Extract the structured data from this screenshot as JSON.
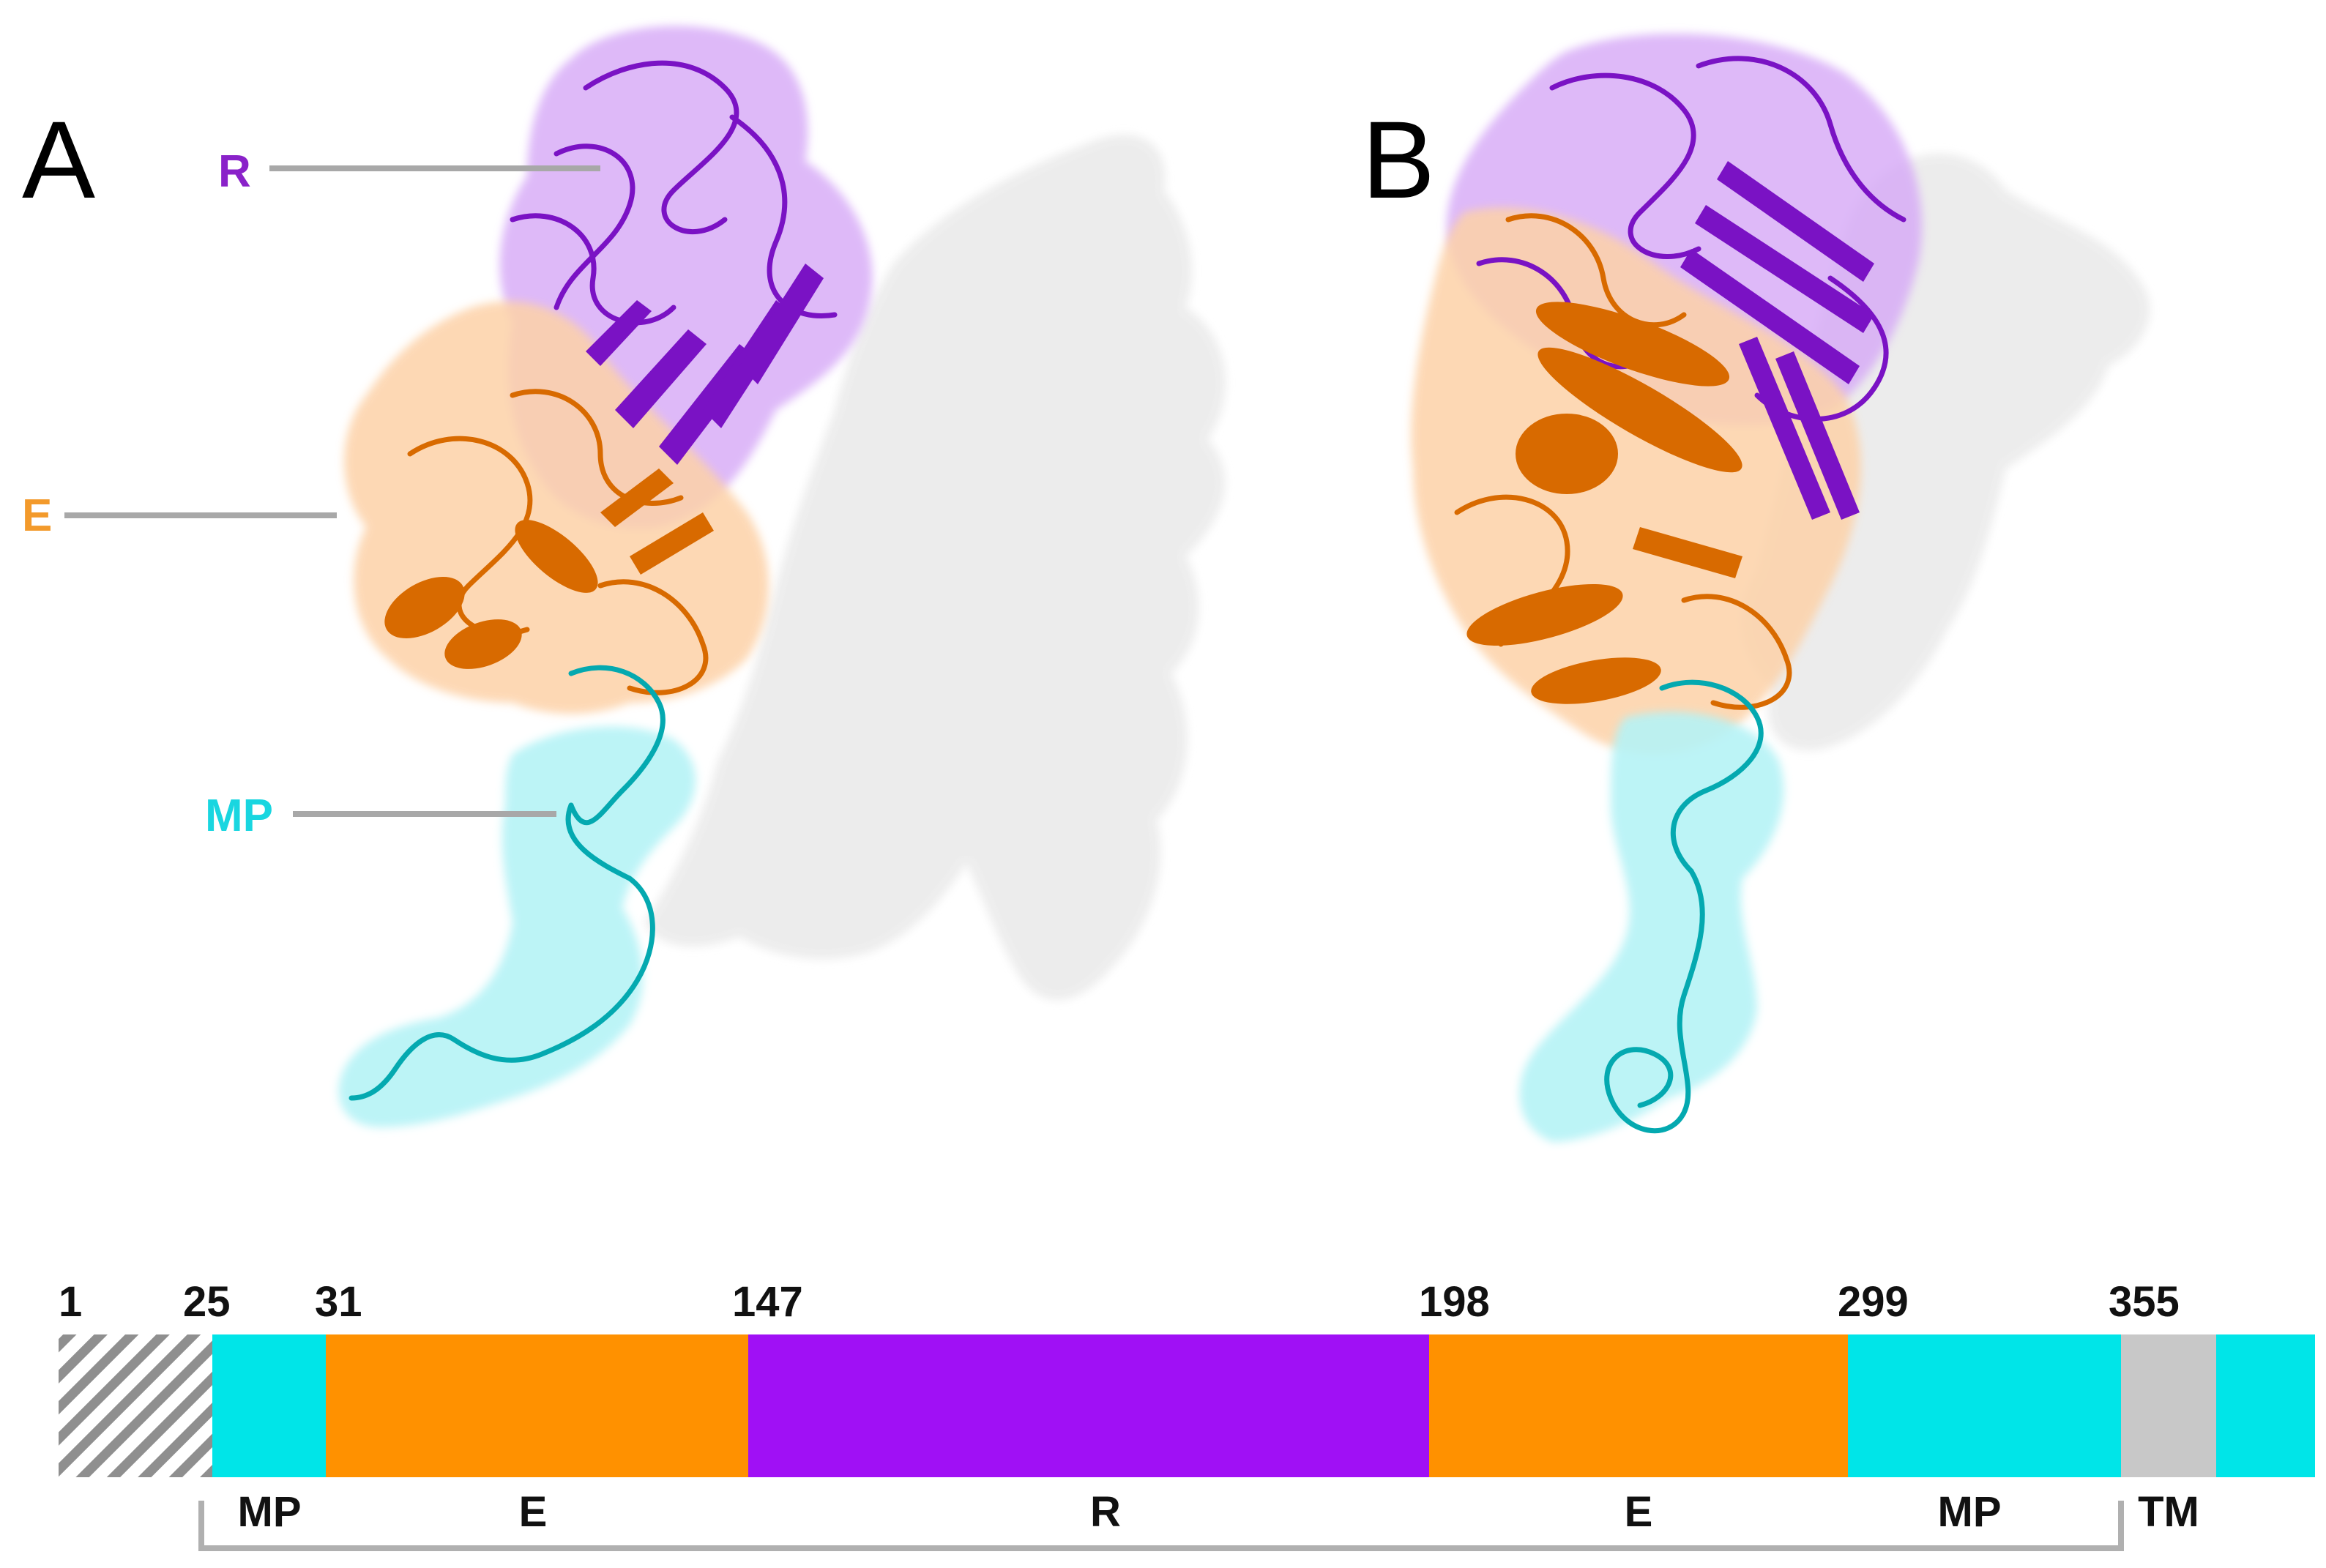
{
  "panels": {
    "a": {
      "letter": "A"
    },
    "b": {
      "letter": "B"
    }
  },
  "domain_labels": {
    "r": "R",
    "e": "E",
    "mp": "MP"
  },
  "colors": {
    "mp": "#00e5e8",
    "e": "#ff9100",
    "r": "#a010f5",
    "tm": "#c8c8c8",
    "signal_hatch": "#8f8f8f",
    "protein_surface": "#ececec",
    "r_text": "#8a22c9",
    "e_text": "#f39a2b",
    "mp_text": "#19d6e0",
    "r_cartoon": "#7a12c4",
    "e_cartoon": "#d86a00",
    "mp_cartoon": "#04a9b0"
  },
  "sequence_bar": {
    "numbers": [
      "1",
      "25",
      "31",
      "147",
      "198",
      "299",
      "355"
    ],
    "segments": [
      {
        "name": "signal",
        "label": "",
        "color": "hatch"
      },
      {
        "name": "mp-1",
        "label": "MP",
        "color": "mp"
      },
      {
        "name": "e-1",
        "label": "E",
        "color": "e"
      },
      {
        "name": "r",
        "label": "R",
        "color": "r"
      },
      {
        "name": "e-2",
        "label": "E",
        "color": "e"
      },
      {
        "name": "mp-2",
        "label": "MP",
        "color": "mp"
      },
      {
        "name": "tm",
        "label": "TM",
        "color": "tm"
      },
      {
        "name": "ct",
        "label": "",
        "color": "mp"
      }
    ]
  }
}
